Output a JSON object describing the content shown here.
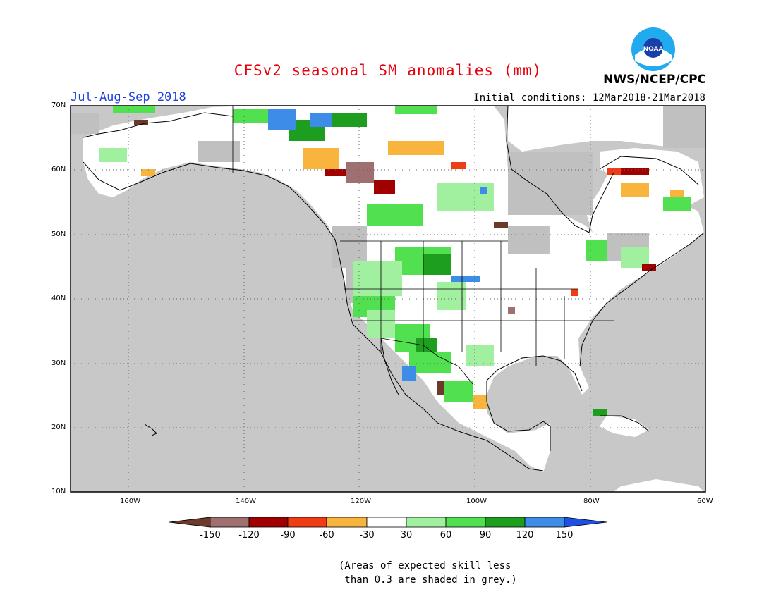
{
  "header": {
    "title": "CFSv2 seasonal SM anomalies (mm)",
    "period": "Jul-Aug-Sep 2018",
    "initial_conditions": "Initial conditions: 12Mar2018-21Mar2018",
    "agency": "NWS/NCEP/CPC",
    "logo_text": "NOAA"
  },
  "map": {
    "lat_labels": [
      "70N",
      "60N",
      "50N",
      "40N",
      "30N",
      "20N",
      "10N"
    ],
    "lon_labels": [
      "160W",
      "140W",
      "120W",
      "100W",
      "80W",
      "60W"
    ],
    "background_color": "#c8c8c8"
  },
  "colorbar": {
    "labels": [
      "-150",
      "-120",
      "-90",
      "-60",
      "-30",
      "30",
      "60",
      "90",
      "120",
      "150"
    ],
    "colors": [
      "#6b3a2a",
      "#a07070",
      "#a00000",
      "#f03c14",
      "#f8b43c",
      "#ffffff",
      "#a0f0a0",
      "#50e050",
      "#1e9e1e",
      "#3c8ce8",
      "#1e50e6"
    ]
  },
  "note": "(Areas of expected skill less\n than 0.3 are shaded in grey.)"
}
